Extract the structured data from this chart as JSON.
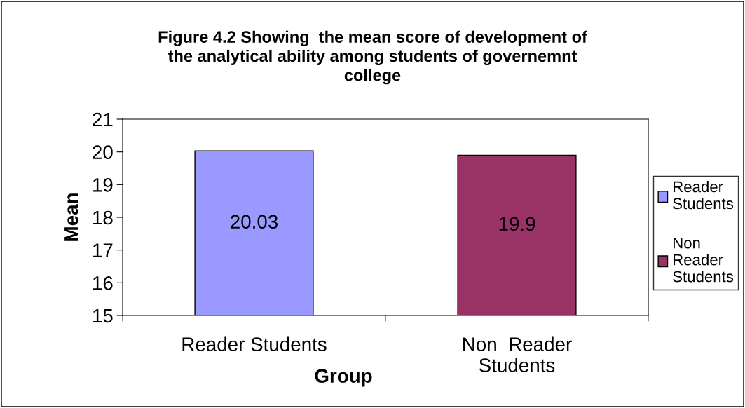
{
  "chart_data": {
    "type": "bar",
    "title": "Figure 4.2 Showing  the mean score of development of\nthe analytical ability among students of governemnt\ncollege",
    "xlabel": "Group",
    "ylabel": "Mean",
    "categories": [
      "Reader Students",
      "Non  Reader\nStudents"
    ],
    "series": [
      {
        "name": "Reader\nStudents",
        "color": "#9999ff",
        "values": [
          20.03,
          null
        ]
      },
      {
        "name": "Non\nReader\nStudents",
        "color": "#993366",
        "values": [
          null,
          19.9
        ]
      }
    ],
    "ylim": [
      15,
      21
    ],
    "yticks": [
      15,
      16,
      17,
      18,
      19,
      20,
      21
    ],
    "data_labels": true,
    "legend": "right",
    "grid": false
  }
}
